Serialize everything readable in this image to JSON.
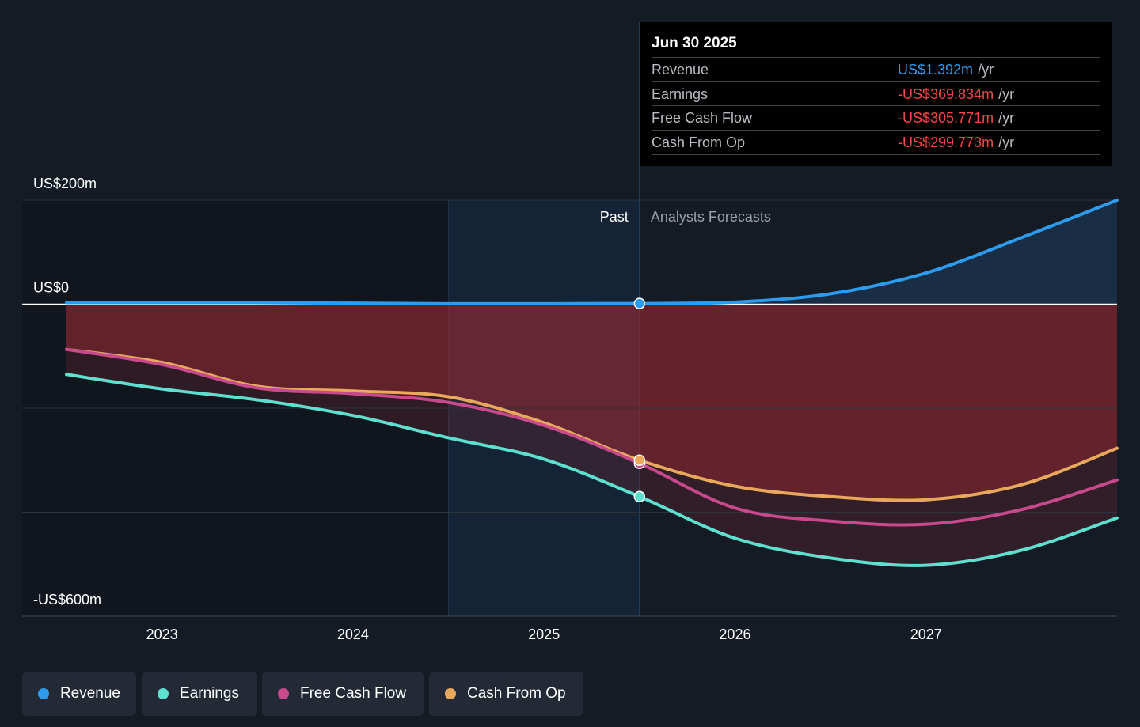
{
  "tooltip": {
    "date": "Jun 30 2025",
    "rows": [
      {
        "label": "Revenue",
        "value": "US$1.392m",
        "unit": "/yr",
        "color": "#2d9cef"
      },
      {
        "label": "Earnings",
        "value": "-US$369.834m",
        "unit": "/yr",
        "color": "#f04848"
      },
      {
        "label": "Free Cash Flow",
        "value": "-US$305.771m",
        "unit": "/yr",
        "color": "#f04848"
      },
      {
        "label": "Cash From Op",
        "value": "-US$299.773m",
        "unit": "/yr",
        "color": "#f04848"
      }
    ]
  },
  "labels": {
    "past": "Past",
    "forecast": "Analysts Forecasts"
  },
  "legend": [
    {
      "label": "Revenue",
      "color": "#2d9cef"
    },
    {
      "label": "Earnings",
      "color": "#5de0d0"
    },
    {
      "label": "Free Cash Flow",
      "color": "#c84a8c"
    },
    {
      "label": "Cash From Op",
      "color": "#e8a95c"
    }
  ],
  "chart_data": {
    "type": "line",
    "ylim": [
      -600,
      200
    ],
    "xlim": [
      2022.5,
      2028
    ],
    "y_ticks": [
      {
        "value": 200,
        "label": "US$200m"
      },
      {
        "value": 0,
        "label": "US$0"
      },
      {
        "value": -600,
        "label": "-US$600m"
      }
    ],
    "x_ticks": [
      {
        "value": 2023,
        "label": "2023"
      },
      {
        "value": 2024,
        "label": "2024"
      },
      {
        "value": 2025,
        "label": "2025"
      },
      {
        "value": 2026,
        "label": "2026"
      },
      {
        "value": 2027,
        "label": "2027"
      }
    ],
    "current_x": 2025.5,
    "past_highlight_start": 2024.5,
    "x": [
      2022.5,
      2023,
      2023.5,
      2024,
      2024.5,
      2025,
      2025.5,
      2026,
      2026.5,
      2027,
      2027.5,
      2028
    ],
    "series": [
      {
        "name": "Revenue",
        "color": "#2d9cef",
        "values": [
          3,
          3,
          3,
          2,
          1,
          1,
          1.4,
          4,
          20,
          60,
          128,
          200
        ]
      },
      {
        "name": "Earnings",
        "color": "#5de0d0",
        "values": [
          -135,
          -163,
          -184,
          -214,
          -257,
          -298,
          -370,
          -450,
          -488,
          -502,
          -473,
          -411
        ]
      },
      {
        "name": "Free Cash Flow",
        "color": "#c84a8c",
        "values": [
          -87,
          -116,
          -161,
          -172,
          -189,
          -233,
          -306,
          -392,
          -417,
          -423,
          -395,
          -338
        ]
      },
      {
        "name": "Cash From Op",
        "color": "#e8a95c",
        "values": [
          -87,
          -112,
          -158,
          -167,
          -178,
          -228,
          -300,
          -350,
          -370,
          -376,
          -347,
          -277
        ]
      }
    ]
  }
}
